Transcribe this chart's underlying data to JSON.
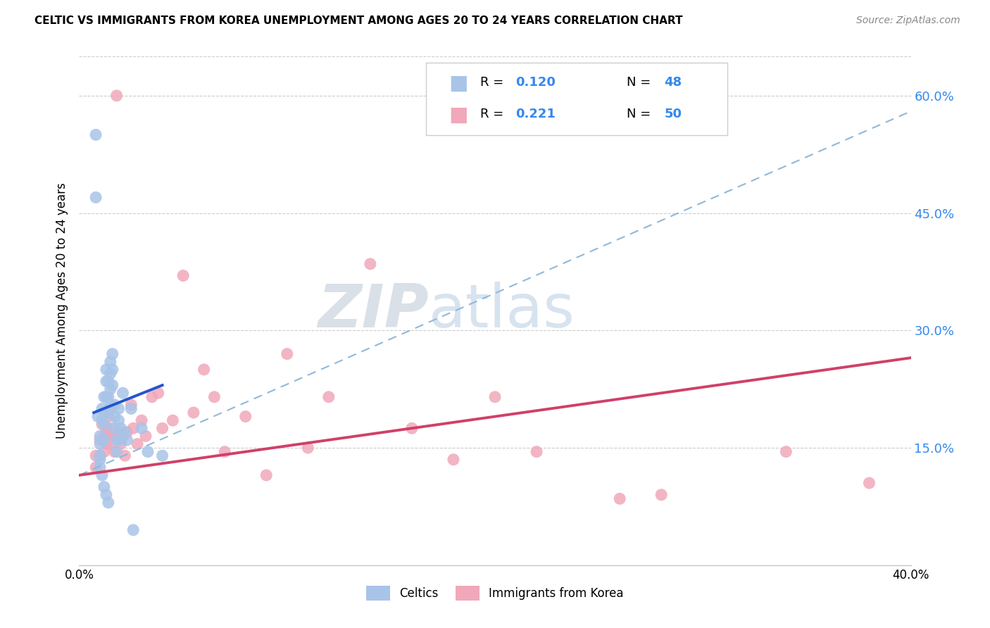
{
  "title": "CELTIC VS IMMIGRANTS FROM KOREA UNEMPLOYMENT AMONG AGES 20 TO 24 YEARS CORRELATION CHART",
  "source": "Source: ZipAtlas.com",
  "ylabel": "Unemployment Among Ages 20 to 24 years",
  "xlim": [
    0.0,
    0.4
  ],
  "ylim": [
    0.0,
    0.65
  ],
  "yticks": [
    0.15,
    0.3,
    0.45,
    0.6
  ],
  "ytick_labels": [
    "15.0%",
    "30.0%",
    "45.0%",
    "60.0%"
  ],
  "xtick_positions": [
    0.0,
    0.1,
    0.2,
    0.3,
    0.4
  ],
  "xtick_labels": [
    "0.0%",
    "",
    "",
    "",
    "40.0%"
  ],
  "legend_label1": "Celtics",
  "legend_label2": "Immigrants from Korea",
  "R1": "0.120",
  "N1": "48",
  "R2": "0.221",
  "N2": "50",
  "watermark_zip": "ZIP",
  "watermark_atlas": "atlas",
  "blue_scatter_color": "#a8c4e8",
  "blue_line_color": "#2255cc",
  "blue_dash_color": "#90b8d8",
  "pink_scatter_color": "#f0a8ba",
  "pink_line_color": "#d04068",
  "legend_box_color": "#dddddd",
  "right_tick_color": "#3388ee",
  "celtics_x": [
    0.008,
    0.008,
    0.009,
    0.01,
    0.01,
    0.01,
    0.011,
    0.011,
    0.012,
    0.012,
    0.012,
    0.012,
    0.013,
    0.013,
    0.013,
    0.014,
    0.014,
    0.014,
    0.015,
    0.015,
    0.015,
    0.015,
    0.016,
    0.016,
    0.016,
    0.017,
    0.017,
    0.017,
    0.018,
    0.018,
    0.019,
    0.019,
    0.02,
    0.02,
    0.021,
    0.022,
    0.023,
    0.025,
    0.026,
    0.03,
    0.033,
    0.04,
    0.01,
    0.01,
    0.011,
    0.012,
    0.013,
    0.014
  ],
  "celtics_y": [
    0.55,
    0.47,
    0.19,
    0.165,
    0.155,
    0.14,
    0.2,
    0.185,
    0.215,
    0.195,
    0.18,
    0.16,
    0.25,
    0.235,
    0.215,
    0.235,
    0.215,
    0.195,
    0.26,
    0.245,
    0.225,
    0.205,
    0.27,
    0.25,
    0.23,
    0.205,
    0.19,
    0.175,
    0.16,
    0.145,
    0.2,
    0.185,
    0.175,
    0.16,
    0.22,
    0.17,
    0.16,
    0.2,
    0.045,
    0.175,
    0.145,
    0.14,
    0.135,
    0.125,
    0.115,
    0.1,
    0.09,
    0.08
  ],
  "korea_x": [
    0.008,
    0.008,
    0.01,
    0.01,
    0.011,
    0.012,
    0.012,
    0.013,
    0.013,
    0.014,
    0.014,
    0.015,
    0.015,
    0.015,
    0.016,
    0.017,
    0.018,
    0.019,
    0.02,
    0.021,
    0.022,
    0.023,
    0.025,
    0.026,
    0.028,
    0.03,
    0.032,
    0.035,
    0.038,
    0.04,
    0.045,
    0.05,
    0.055,
    0.06,
    0.065,
    0.07,
    0.08,
    0.09,
    0.1,
    0.11,
    0.12,
    0.14,
    0.16,
    0.18,
    0.2,
    0.22,
    0.26,
    0.28,
    0.34,
    0.38
  ],
  "korea_y": [
    0.14,
    0.125,
    0.16,
    0.14,
    0.18,
    0.165,
    0.145,
    0.175,
    0.155,
    0.19,
    0.165,
    0.2,
    0.175,
    0.155,
    0.165,
    0.145,
    0.6,
    0.17,
    0.155,
    0.165,
    0.14,
    0.17,
    0.205,
    0.175,
    0.155,
    0.185,
    0.165,
    0.215,
    0.22,
    0.175,
    0.185,
    0.37,
    0.195,
    0.25,
    0.215,
    0.145,
    0.19,
    0.115,
    0.27,
    0.15,
    0.215,
    0.385,
    0.175,
    0.135,
    0.215,
    0.145,
    0.085,
    0.09,
    0.145,
    0.105
  ],
  "blue_line_x": [
    0.007,
    0.04
  ],
  "blue_line_y": [
    0.195,
    0.23
  ],
  "pink_line_x": [
    0.0,
    0.4
  ],
  "pink_line_y": [
    0.115,
    0.265
  ],
  "dash_line_x": [
    0.0,
    0.4
  ],
  "dash_line_y": [
    0.115,
    0.58
  ]
}
